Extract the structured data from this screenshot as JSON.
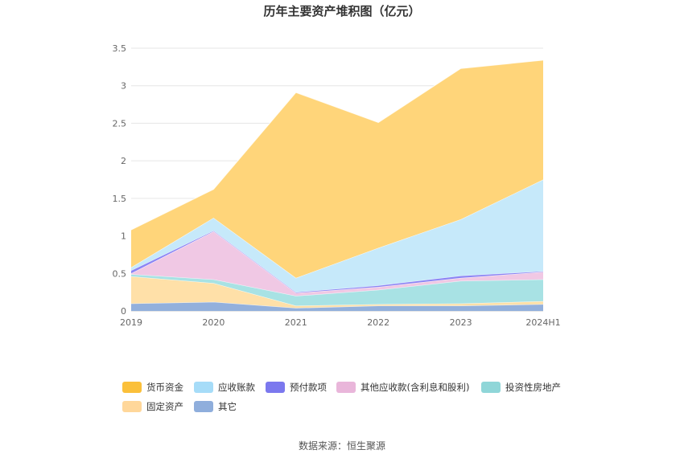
{
  "chart_data": {
    "type": "area",
    "stacked": true,
    "title": "历年主要资产堆积图（亿元）",
    "categories": [
      "2019",
      "2020",
      "2021",
      "2022",
      "2023",
      "2024H1"
    ],
    "ylim": [
      0,
      3.5
    ],
    "yticks": [
      "0",
      "0.5",
      "1",
      "1.5",
      "2",
      "2.5",
      "3",
      "3.5"
    ],
    "grid": true,
    "legend_position": "bottom",
    "series": [
      {
        "name": "其它",
        "color": "#93b0dc",
        "values": [
          0.1,
          0.12,
          0.04,
          0.07,
          0.07,
          0.09
        ]
      },
      {
        "name": "固定资产",
        "color": "#ffe0a8",
        "values": [
          0.36,
          0.25,
          0.03,
          0.02,
          0.03,
          0.04
        ]
      },
      {
        "name": "投资性房地产",
        "color": "#a8e2e4",
        "values": [
          0.03,
          0.05,
          0.13,
          0.19,
          0.3,
          0.29
        ]
      },
      {
        "name": "其他应收款(含利息和股利)",
        "color": "#f0c8e4",
        "values": [
          0.01,
          0.64,
          0.04,
          0.04,
          0.04,
          0.1
        ]
      },
      {
        "name": "预付款项",
        "color": "#8b85f4",
        "values": [
          0.04,
          0.01,
          0.01,
          0.02,
          0.03,
          0.01
        ]
      },
      {
        "name": "应收账款",
        "color": "#c6e9fa",
        "values": [
          0.04,
          0.17,
          0.19,
          0.5,
          0.75,
          1.22
        ]
      },
      {
        "name": "货币资金",
        "color": "#ffd57a",
        "values": [
          0.5,
          0.38,
          2.47,
          1.67,
          2.01,
          1.59
        ]
      }
    ],
    "legend_order": [
      "货币资金",
      "应收账款",
      "预付款项",
      "其他应收款(含利息和股利)",
      "投资性房地产",
      "固定资产",
      "其它"
    ],
    "legend_colors": {
      "货币资金": "#fbc03a",
      "应收账款": "#a6dcf8",
      "预付款项": "#7b78ee",
      "其他应收款(含利息和股利)": "#e9b6da",
      "投资性房地产": "#8fd6d8",
      "固定资产": "#ffd79a",
      "其它": "#8faedc"
    }
  },
  "source": "数据来源：恒生聚源"
}
